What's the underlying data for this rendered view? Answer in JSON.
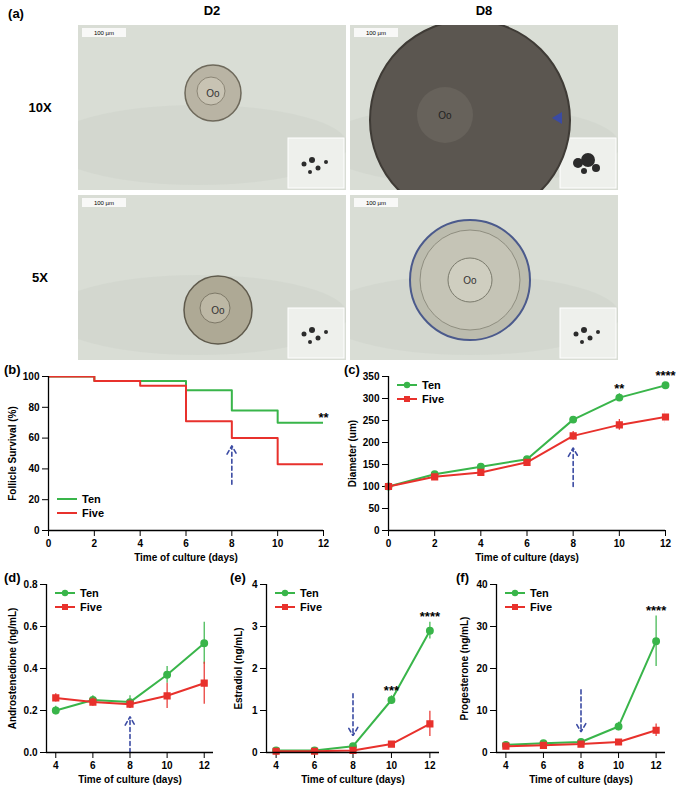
{
  "panel_a": {
    "panel_label": "(a)",
    "columns": [
      "D2",
      "D8"
    ],
    "rows": [
      "10X",
      "5X"
    ],
    "oocyte_label": "Oo",
    "scale_bar": "100 µm"
  },
  "chart_data": [
    {
      "type": "line",
      "panel_label": "(b)",
      "x_label": "Time of culture (days)",
      "y_label": "Follicle Survival (%)",
      "x": [
        0,
        2,
        4,
        6,
        8,
        10,
        12
      ],
      "xlim": [
        0,
        12
      ],
      "xticks": [
        0,
        2,
        4,
        6,
        8,
        10,
        12
      ],
      "ylim": [
        0,
        100
      ],
      "yticks": [
        0,
        20,
        40,
        60,
        80,
        100
      ],
      "line_style": "step",
      "legend": "lower left",
      "series": [
        {
          "name": "Ten",
          "color": "#39b54a",
          "marker": "none",
          "values": [
            100,
            97,
            97,
            91,
            78,
            70,
            70
          ]
        },
        {
          "name": "Five",
          "color": "#e8312c",
          "marker": "none",
          "values": [
            100,
            97,
            94,
            71,
            60,
            43,
            43
          ]
        }
      ],
      "annotations": [
        {
          "x": 12,
          "text": "**"
        }
      ],
      "arrow": {
        "x": 8,
        "direction": "up"
      }
    },
    {
      "type": "line",
      "panel_label": "(c)",
      "x_label": "Time of culture (days)",
      "y_label": "Diameter (um)",
      "x": [
        0,
        2,
        4,
        6,
        8,
        10,
        12
      ],
      "xlim": [
        0,
        12
      ],
      "xticks": [
        0,
        2,
        4,
        6,
        8,
        10,
        12
      ],
      "ylim": [
        0,
        350
      ],
      "yticks": [
        0,
        50,
        100,
        150,
        200,
        250,
        300,
        350
      ],
      "legend": "upper left",
      "series": [
        {
          "name": "Ten",
          "color": "#39b54a",
          "marker": "circle",
          "values": [
            100,
            128,
            145,
            162,
            252,
            302,
            330
          ],
          "errors": [
            0,
            4,
            4,
            5,
            7,
            9,
            10
          ]
        },
        {
          "name": "Five",
          "color": "#e8312c",
          "marker": "square",
          "values": [
            100,
            122,
            132,
            155,
            215,
            240,
            258
          ],
          "errors": [
            0,
            4,
            4,
            5,
            10,
            12,
            14
          ]
        }
      ],
      "annotations": [
        {
          "x": 10,
          "text": "**"
        },
        {
          "x": 12,
          "text": "****"
        }
      ],
      "arrow": {
        "x": 8,
        "direction": "up"
      }
    },
    {
      "type": "line",
      "panel_label": "(d)",
      "x_label": "Time of culture (days)",
      "y_label": "Androstenedione (ng/mL)",
      "x": [
        4,
        6,
        8,
        10,
        12
      ],
      "xlim": [
        3.5,
        12.5
      ],
      "xticks": [
        4,
        6,
        8,
        10,
        12
      ],
      "ylim": [
        0,
        0.8
      ],
      "yticks": [
        {
          "value": 0,
          "label": "0.0"
        },
        0.2,
        0.4,
        0.6,
        0.8
      ],
      "legend": "upper left",
      "series": [
        {
          "name": "Ten",
          "color": "#39b54a",
          "marker": "circle",
          "values": [
            0.2,
            0.25,
            0.24,
            0.37,
            0.52
          ],
          "errors": [
            0.02,
            0.02,
            0.03,
            0.04,
            0.1
          ]
        },
        {
          "name": "Five",
          "color": "#e8312c",
          "marker": "square",
          "values": [
            0.26,
            0.24,
            0.23,
            0.27,
            0.33
          ],
          "errors": [
            0.02,
            0.02,
            0.02,
            0.06,
            0.1
          ]
        }
      ],
      "annotations": [],
      "arrow": {
        "x": 8,
        "direction": "up"
      }
    },
    {
      "type": "line",
      "panel_label": "(e)",
      "x_label": "Time of culture (days)",
      "y_label": "Estradiol (ng/mL)",
      "x": [
        4,
        6,
        8,
        10,
        12
      ],
      "xlim": [
        3.5,
        12.5
      ],
      "xticks": [
        4,
        6,
        8,
        10,
        12
      ],
      "ylim": [
        0,
        4
      ],
      "yticks": [
        0,
        1,
        2,
        3,
        4
      ],
      "legend": "upper left",
      "series": [
        {
          "name": "Ten",
          "color": "#39b54a",
          "marker": "circle",
          "values": [
            0.05,
            0.05,
            0.15,
            1.25,
            2.9
          ],
          "errors": [
            0.02,
            0.02,
            0.05,
            0.1,
            0.2
          ]
        },
        {
          "name": "Five",
          "color": "#e8312c",
          "marker": "square",
          "values": [
            0.03,
            0.03,
            0.05,
            0.2,
            0.68
          ],
          "errors": [
            0.01,
            0.01,
            0.02,
            0.05,
            0.3
          ]
        }
      ],
      "annotations": [
        {
          "x": 10,
          "text": "***"
        },
        {
          "x": 12,
          "text": "****"
        }
      ],
      "arrow": {
        "x": 8,
        "direction": "down"
      }
    },
    {
      "type": "line",
      "panel_label": "(f)",
      "x_label": "Time of culture (days)",
      "y_label": "Progesterone (ng/mL)",
      "x": [
        4,
        6,
        8,
        10,
        12
      ],
      "xlim": [
        3.5,
        12.5
      ],
      "xticks": [
        4,
        6,
        8,
        10,
        12
      ],
      "ylim": [
        0,
        40
      ],
      "yticks": [
        0,
        10,
        20,
        30,
        40
      ],
      "legend": "upper left",
      "series": [
        {
          "name": "Ten",
          "color": "#39b54a",
          "marker": "circle",
          "values": [
            1.8,
            2.2,
            2.5,
            6.2,
            26.5
          ],
          "errors": [
            0.3,
            0.3,
            0.4,
            1.0,
            6.0
          ]
        },
        {
          "name": "Five",
          "color": "#e8312c",
          "marker": "square",
          "values": [
            1.5,
            1.7,
            2.0,
            2.5,
            5.3
          ],
          "errors": [
            0.2,
            0.2,
            0.3,
            0.5,
            1.5
          ]
        }
      ],
      "annotations": [
        {
          "x": 12,
          "text": "****"
        }
      ],
      "arrow": {
        "x": 8,
        "direction": "down"
      }
    }
  ]
}
